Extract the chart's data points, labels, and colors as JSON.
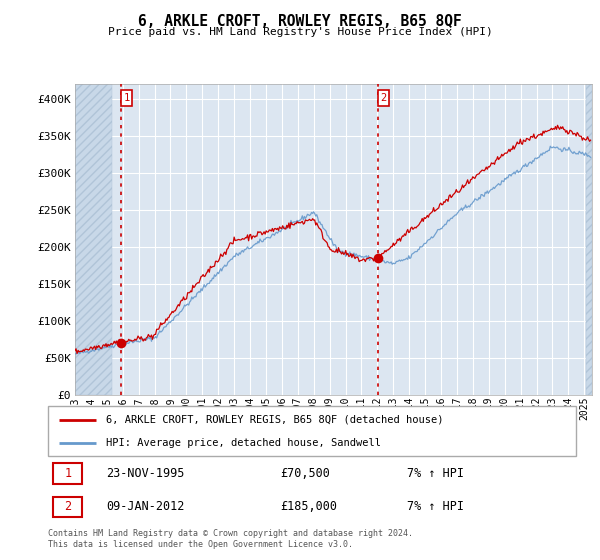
{
  "title": "6, ARKLE CROFT, ROWLEY REGIS, B65 8QF",
  "subtitle": "Price paid vs. HM Land Registry's House Price Index (HPI)",
  "ylim": [
    0,
    420000
  ],
  "yticks": [
    0,
    50000,
    100000,
    150000,
    200000,
    250000,
    300000,
    350000,
    400000
  ],
  "ytick_labels": [
    "£0",
    "£50K",
    "£100K",
    "£150K",
    "£200K",
    "£250K",
    "£300K",
    "£350K",
    "£400K"
  ],
  "background_color": "#ffffff",
  "plot_bg_color": "#dce6f1",
  "hatch_color": "#c8d8e8",
  "grid_color": "#ffffff",
  "line1_color": "#cc0000",
  "line2_color": "#6699cc",
  "annotation_box_color": "#cc0000",
  "sale1_date_x": 1995.9,
  "sale1_price": 70500,
  "sale2_date_x": 2012.03,
  "sale2_price": 185000,
  "legend_line1": "6, ARKLE CROFT, ROWLEY REGIS, B65 8QF (detached house)",
  "legend_line2": "HPI: Average price, detached house, Sandwell",
  "note1_label": "1",
  "note1_date": "23-NOV-1995",
  "note1_price": "£70,500",
  "note1_hpi": "7% ↑ HPI",
  "note2_label": "2",
  "note2_date": "09-JAN-2012",
  "note2_price": "£185,000",
  "note2_hpi": "7% ↑ HPI",
  "footer": "Contains HM Land Registry data © Crown copyright and database right 2024.\nThis data is licensed under the Open Government Licence v3.0.",
  "xmin": 1993,
  "xmax": 2025.5,
  "hatch_end": 1995.3,
  "hatch_start2": 2025.1,
  "xtick_years": [
    1993,
    1994,
    1995,
    1996,
    1997,
    1998,
    1999,
    2000,
    2001,
    2002,
    2003,
    2004,
    2005,
    2006,
    2007,
    2008,
    2009,
    2010,
    2011,
    2012,
    2013,
    2014,
    2015,
    2016,
    2017,
    2018,
    2019,
    2020,
    2021,
    2022,
    2023,
    2024,
    2025
  ]
}
